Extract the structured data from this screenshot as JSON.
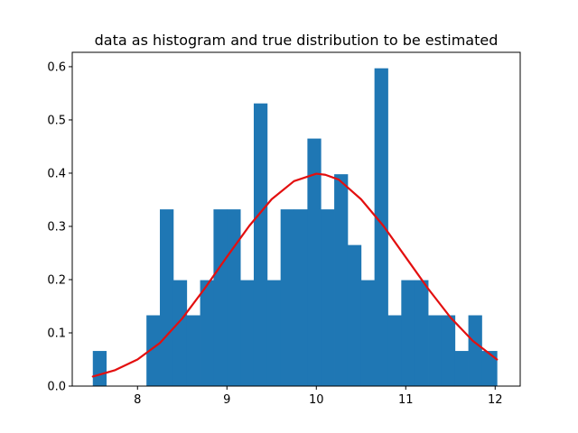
{
  "chart_data": {
    "type": "bar",
    "title": "data as histogram and true distribution to be estimated",
    "xlabel": "",
    "ylabel": "",
    "xlim": [
      7.27,
      12.28
    ],
    "ylim": [
      0,
      0.627
    ],
    "xticks": [
      8,
      9,
      10,
      11,
      12
    ],
    "yticks": [
      0.0,
      0.1,
      0.2,
      0.3,
      0.4,
      0.5,
      0.6
    ],
    "grid": false,
    "legend": "none",
    "bar_color": "#1f77b4",
    "curve_color": "#e30f0f",
    "histogram": {
      "bin_edges": [
        7.5,
        7.65,
        7.8,
        7.95,
        8.1,
        8.25,
        8.4,
        8.55,
        8.7,
        8.85,
        9.0,
        9.15,
        9.3,
        9.45,
        9.6,
        9.75,
        9.9,
        10.05,
        10.2,
        10.35,
        10.5,
        10.65,
        10.8,
        10.95,
        11.1,
        11.25,
        11.4,
        11.55,
        11.7,
        11.85,
        12.02
      ],
      "values": [
        0.066,
        0.0,
        0.0,
        0.0,
        0.133,
        0.332,
        0.199,
        0.133,
        0.199,
        0.332,
        0.332,
        0.199,
        0.531,
        0.199,
        0.332,
        0.332,
        0.465,
        0.332,
        0.398,
        0.265,
        0.199,
        0.597,
        0.133,
        0.199,
        0.199,
        0.133,
        0.133,
        0.066,
        0.133,
        0.066
      ]
    },
    "series": [
      {
        "type": "line",
        "x": [
          7.5,
          7.75,
          8.0,
          8.25,
          8.5,
          8.75,
          9.0,
          9.25,
          9.5,
          9.75,
          10.0,
          10.1,
          10.25,
          10.5,
          10.75,
          11.0,
          11.25,
          11.5,
          11.75,
          12.02
        ],
        "y": [
          0.018,
          0.03,
          0.05,
          0.081,
          0.127,
          0.183,
          0.243,
          0.301,
          0.351,
          0.385,
          0.399,
          0.397,
          0.388,
          0.351,
          0.301,
          0.242,
          0.183,
          0.129,
          0.085,
          0.05
        ]
      }
    ]
  }
}
